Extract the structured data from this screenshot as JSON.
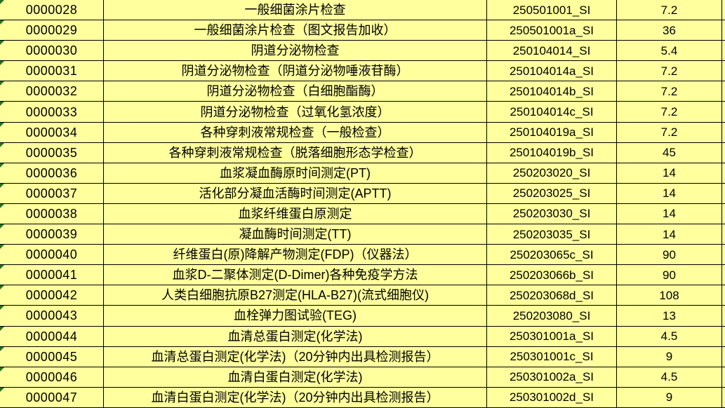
{
  "app": {
    "type": "spreadsheet-grid-view"
  },
  "colors": {
    "cell_background": "#ffff9e",
    "grid_line": "#000000",
    "text": "#000000",
    "error_indicator_green": "#217321"
  },
  "icons": {
    "error_indicator": "small-green-triangle-top-left-corner"
  },
  "table": {
    "visible_columns": [
      "row-id",
      "test-name",
      "charge-code",
      "price"
    ],
    "rows": [
      [
        "0000028",
        "一般细菌涂片检查",
        "250501001_SI",
        "7.2"
      ],
      [
        "0000029",
        "一般细菌涂片检查（图文报告加收）",
        "250501001a_SI",
        "36"
      ],
      [
        "0000030",
        "阴道分泌物检查",
        "250104014_SI",
        "5.4"
      ],
      [
        "0000031",
        "阴道分泌物检查（阴道分泌物唾液苷酶）",
        "250104014a_SI",
        "7.2"
      ],
      [
        "0000032",
        "阴道分泌物检查（白细胞酯酶）",
        "250104014b_SI",
        "7.2"
      ],
      [
        "0000033",
        "阴道分泌物检查（过氧化氢浓度）",
        "250104014c_SI",
        "7.2"
      ],
      [
        "0000034",
        "各种穿刺液常规检查（一般检查）",
        "250104019a_SI",
        "7.2"
      ],
      [
        "0000035",
        "各种穿刺液常规检查（脱落细胞形态学检查）",
        "250104019b_SI",
        "45"
      ],
      [
        "0000036",
        "血浆凝血酶原时间测定(PT)",
        "250203020_SI",
        "14"
      ],
      [
        "0000037",
        "活化部分凝血活酶时间测定(APTT)",
        "250203025_SI",
        "14"
      ],
      [
        "0000038",
        "血浆纤维蛋白原测定",
        "250203030_SI",
        "14"
      ],
      [
        "0000039",
        "凝血酶时间测定(TT)",
        "250203035_SI",
        "14"
      ],
      [
        "0000040",
        "纤维蛋白(原)降解产物测定(FDP)（仪器法）",
        "250203065c_SI",
        "90"
      ],
      [
        "0000041",
        "血浆D-二聚体测定(D-Dimer)各种免疫学方法",
        "250203066b_SI",
        "90"
      ],
      [
        "0000042",
        "人类白细胞抗原B27测定(HLA-B27)(流式细胞仪)",
        "250203068d_SI",
        "108"
      ],
      [
        "0000043",
        "血栓弹力图试验(TEG)",
        "250203080_SI",
        "13"
      ],
      [
        "0000044",
        "血清总蛋白测定(化学法)",
        "250301001a_SI",
        "4.5"
      ],
      [
        "0000045",
        "血清总蛋白测定(化学法)（20分钟内出具检测报告）",
        "250301001c_SI",
        "9"
      ],
      [
        "0000046",
        "血清白蛋白测定(化学法)",
        "250301002a_SI",
        "4.5"
      ],
      [
        "0000047",
        "血清白蛋白测定(化学法)（20分钟内出具检测报告）",
        "250301002d_SI",
        "9"
      ]
    ]
  }
}
